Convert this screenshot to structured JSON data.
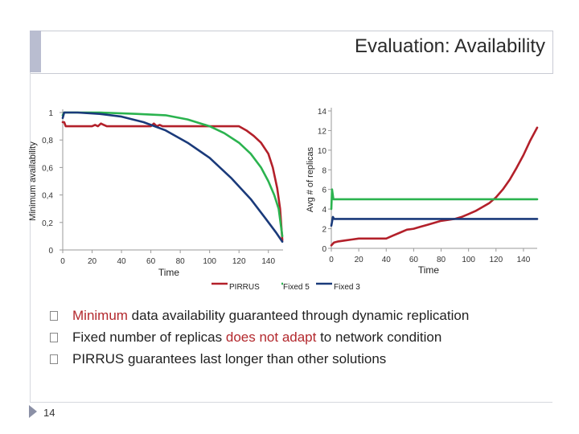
{
  "slide": {
    "title": "Evaluation: Availability",
    "slide_number": "14",
    "bullets": [
      {
        "pre": "Minimum",
        "hl": " data availability ",
        "post": "guaranteed through dynamic replication",
        "hl_at": "none"
      },
      {
        "pre": "Fixed number of replicas ",
        "hl": "does not adapt",
        "post": " to network condition",
        "hl_at": "middle"
      },
      {
        "pre": "PIRRUS guarantees last longer than other solutions",
        "hl": "",
        "post": "",
        "hl_at": "none"
      }
    ],
    "colors": {
      "pirrus": "#b3202a",
      "fixed5": "#2bb34f",
      "fixed3": "#1a3a7a",
      "highlight": "#b3282d"
    }
  },
  "chart_data": [
    {
      "type": "line",
      "title": "",
      "xlabel": "Time",
      "ylabel": "Minimum availability",
      "xlim": [
        0,
        150
      ],
      "ylim": [
        0,
        1
      ],
      "x_ticks": [
        "0",
        "20",
        "40",
        "60",
        "80",
        "100",
        "120",
        "140"
      ],
      "x_tick_values": [
        0,
        20,
        40,
        60,
        80,
        100,
        120,
        140
      ],
      "y_ticks": [
        "0",
        "0,2",
        "0,4",
        "0,6",
        "0,8",
        "1"
      ],
      "y_tick_values": [
        0,
        0.2,
        0.4,
        0.6,
        0.8,
        1
      ],
      "grid": false,
      "series": [
        {
          "name": "PIRRUS",
          "color": "#b3202a",
          "x": [
            0,
            1,
            2,
            20,
            22,
            24,
            26,
            28,
            30,
            60,
            62,
            64,
            66,
            68,
            70,
            120,
            125,
            130,
            135,
            140,
            143,
            146,
            148,
            149.5
          ],
          "y": [
            0.93,
            0.93,
            0.9,
            0.9,
            0.91,
            0.9,
            0.92,
            0.91,
            0.9,
            0.9,
            0.92,
            0.9,
            0.91,
            0.9,
            0.9,
            0.9,
            0.87,
            0.83,
            0.78,
            0.7,
            0.6,
            0.45,
            0.3,
            0.07
          ]
        },
        {
          "name": "Fixed 5",
          "color": "#2bb34f",
          "x": [
            0,
            1,
            2,
            25,
            50,
            70,
            85,
            100,
            110,
            120,
            128,
            135,
            140,
            144,
            147,
            149.5
          ],
          "y": [
            0.98,
            1.0,
            1.0,
            1.0,
            0.99,
            0.98,
            0.95,
            0.9,
            0.85,
            0.78,
            0.7,
            0.6,
            0.5,
            0.4,
            0.3,
            0.1
          ]
        },
        {
          "name": "Fixed 3",
          "color": "#1a3a7a",
          "x": [
            0,
            1,
            2,
            10,
            25,
            40,
            55,
            70,
            85,
            100,
            115,
            128,
            138,
            145,
            149.5
          ],
          "y": [
            0.96,
            1.0,
            1.0,
            1.0,
            0.99,
            0.97,
            0.93,
            0.87,
            0.78,
            0.67,
            0.52,
            0.37,
            0.23,
            0.13,
            0.06
          ]
        }
      ]
    },
    {
      "type": "line",
      "title": "",
      "xlabel": "Time",
      "ylabel": "Avg # of replicas",
      "xlim": [
        0,
        150
      ],
      "ylim": [
        0,
        14
      ],
      "x_ticks": [
        "0",
        "20",
        "40",
        "60",
        "80",
        "100",
        "120",
        "140"
      ],
      "x_tick_values": [
        0,
        20,
        40,
        60,
        80,
        100,
        120,
        140
      ],
      "y_ticks": [
        "0",
        "2",
        "4",
        "6",
        "8",
        "10",
        "12",
        "14"
      ],
      "y_tick_values": [
        0,
        2,
        4,
        6,
        8,
        10,
        12,
        14
      ],
      "grid": false,
      "legend": "bottom",
      "series": [
        {
          "name": "PIRRUS",
          "color": "#b3202a",
          "x": [
            0,
            2,
            5,
            10,
            15,
            20,
            25,
            30,
            40,
            45,
            50,
            55,
            60,
            65,
            70,
            75,
            80,
            85,
            90,
            95,
            100,
            105,
            110,
            115,
            120,
            125,
            130,
            135,
            140,
            145,
            150
          ],
          "y": [
            0.3,
            0.6,
            0.7,
            0.8,
            0.9,
            1.0,
            1.0,
            1.0,
            1.0,
            1.3,
            1.6,
            1.9,
            2.0,
            2.2,
            2.4,
            2.6,
            2.8,
            2.9,
            3.0,
            3.2,
            3.5,
            3.8,
            4.2,
            4.6,
            5.2,
            6.0,
            7.0,
            8.2,
            9.5,
            11.0,
            12.3
          ]
        },
        {
          "name": "Fixed 5",
          "color": "#2bb34f",
          "x": [
            0,
            0.5,
            1.5,
            150
          ],
          "y": [
            4.0,
            6.0,
            5.0,
            5.0
          ]
        },
        {
          "name": "Fixed 3",
          "color": "#1a3a7a",
          "x": [
            0,
            1.2,
            2,
            150
          ],
          "y": [
            2.3,
            3.2,
            3.0,
            3.0
          ]
        }
      ]
    }
  ]
}
